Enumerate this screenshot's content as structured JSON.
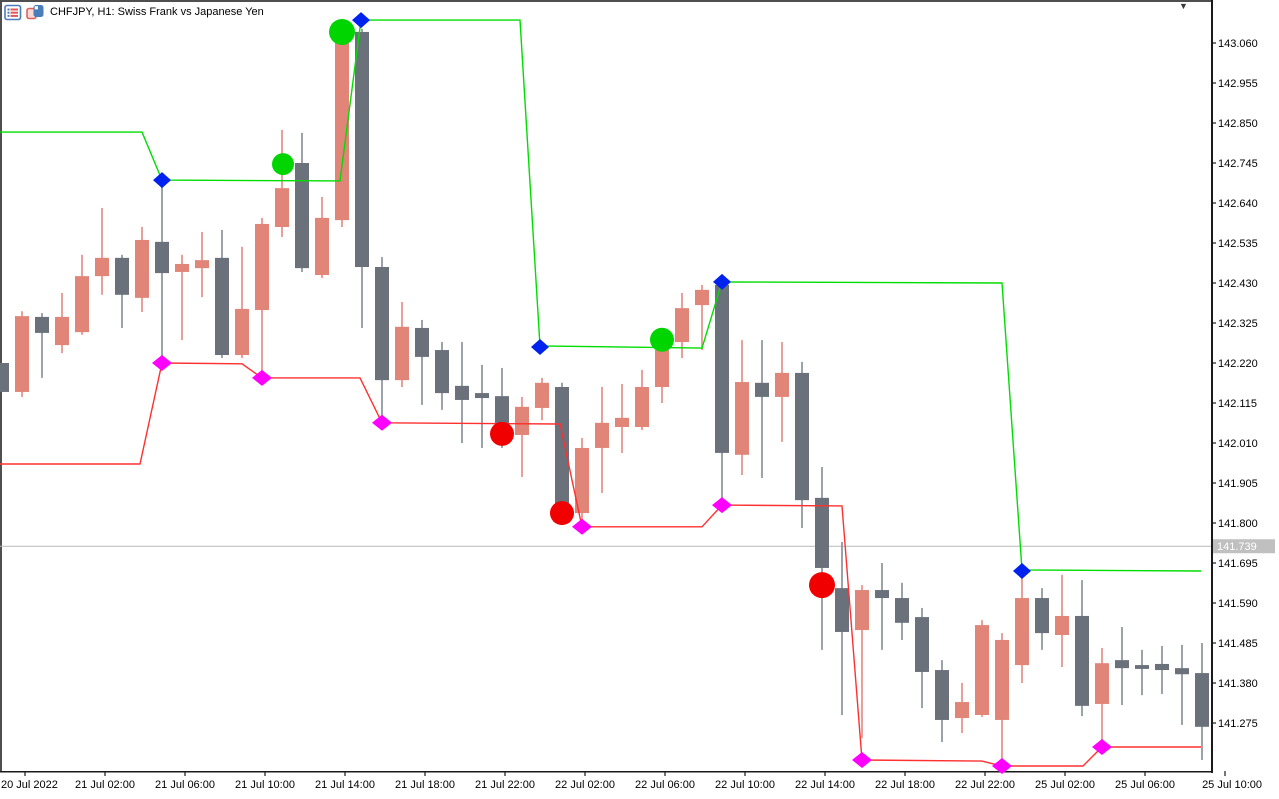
{
  "window": {
    "title": "CHFJPY, H1: Swiss Frank vs Japanese Yen",
    "dropdown_arrow": "▼"
  },
  "colors": {
    "bull": "#e08578",
    "bear": "#6a717b",
    "bull_wick": "#e2897f",
    "bear_wick": "#848b95",
    "up_line": "#00dd00",
    "down_line": "#ff3030",
    "blue_diamond": "#0022ee",
    "magenta_diamond": "#ff00ff",
    "green_circle": "#00d500",
    "red_circle": "#f10000",
    "bid_line": "#b9b9b9",
    "badge_bg": "#c0c0c0",
    "badge_text": "#ffffff",
    "axis_line": "#1a1a1a",
    "border": "#4f4f4f"
  },
  "axes": {
    "price_tick_labels": [
      "143.060",
      "142.955",
      "142.850",
      "142.745",
      "142.640",
      "142.535",
      "142.430",
      "142.325",
      "142.220",
      "142.115",
      "142.010",
      "141.905",
      "141.800",
      "141.695",
      "141.590",
      "141.485",
      "141.380",
      "141.275"
    ],
    "time_tick_labels": [
      "20 Jul 2022",
      "21 Jul 02:00",
      "21 Jul 06:00",
      "21 Jul 10:00",
      "21 Jul 14:00",
      "21 Jul 18:00",
      "21 Jul 22:00",
      "22 Jul 02:00",
      "22 Jul 06:00",
      "22 Jul 10:00",
      "22 Jul 14:00",
      "22 Jul 18:00",
      "22 Jul 22:00",
      "25 Jul 02:00",
      "25 Jul 06:00",
      "25 Jul 10:00"
    ],
    "bid": {
      "label": "141.739",
      "price": 141.739
    }
  },
  "chart_data": {
    "type": "candlestick",
    "symbol": "CHFJPY",
    "timeframe": "H1",
    "title": "CHFJPY, H1: Swiss Frank vs Japanese Yen",
    "price_axis_range": [
      141.16,
      143.17
    ],
    "grid": false,
    "candles": [
      [
        "down",
        142.22,
        142.22,
        142.144,
        142.144
      ],
      [
        "up",
        142.144,
        142.356,
        142.131,
        142.343
      ],
      [
        "down",
        142.341,
        142.351,
        142.181,
        142.299
      ],
      [
        "up",
        142.267,
        142.404,
        142.246,
        142.341
      ],
      [
        "up",
        142.301,
        142.504,
        142.294,
        142.448
      ],
      [
        "up",
        142.448,
        142.627,
        142.399,
        142.496
      ],
      [
        "down",
        142.496,
        142.504,
        142.312,
        142.399
      ],
      [
        "up",
        142.391,
        142.577,
        142.354,
        142.543
      ],
      [
        "down",
        142.538,
        142.685,
        142.228,
        142.456
      ],
      [
        "up",
        142.459,
        142.504,
        142.28,
        142.48
      ],
      [
        "up",
        142.469,
        142.564,
        142.393,
        142.49
      ],
      [
        "down",
        142.496,
        142.569,
        142.233,
        142.241
      ],
      [
        "up",
        142.241,
        142.525,
        142.233,
        142.362
      ],
      [
        "up",
        142.359,
        142.601,
        142.194,
        142.585
      ],
      [
        "up",
        142.577,
        142.832,
        142.551,
        142.679
      ],
      [
        "down",
        142.745,
        142.824,
        142.459,
        142.469
      ],
      [
        "up",
        142.451,
        142.656,
        142.443,
        142.601
      ],
      [
        "up",
        142.595,
        143.078,
        142.577,
        143.068
      ],
      [
        "down",
        143.089,
        143.097,
        142.312,
        142.472
      ],
      [
        "down",
        142.472,
        142.498,
        142.076,
        142.175
      ],
      [
        "up",
        142.175,
        142.38,
        142.157,
        142.315
      ],
      [
        "down",
        142.312,
        142.333,
        142.11,
        142.236
      ],
      [
        "down",
        142.254,
        142.275,
        142.097,
        142.141
      ],
      [
        "down",
        142.16,
        142.275,
        142.01,
        142.123
      ],
      [
        "down",
        142.141,
        142.215,
        141.997,
        142.128
      ],
      [
        "down",
        142.133,
        142.207,
        141.997,
        142.057
      ],
      [
        "up",
        142.031,
        142.131,
        141.921,
        142.105
      ],
      [
        "up",
        142.102,
        142.181,
        142.07,
        142.168
      ],
      [
        "down",
        142.157,
        142.168,
        141.818,
        141.842
      ],
      [
        "up",
        141.826,
        142.023,
        141.808,
        141.997
      ],
      [
        "up",
        141.997,
        142.157,
        141.879,
        142.063
      ],
      [
        "up",
        142.052,
        142.165,
        141.984,
        142.076
      ],
      [
        "up",
        142.052,
        142.202,
        142.044,
        142.157
      ],
      [
        "up",
        142.157,
        142.267,
        142.115,
        142.254
      ],
      [
        "up",
        142.275,
        142.404,
        142.233,
        142.364
      ],
      [
        "up",
        142.372,
        142.425,
        142.254,
        142.412
      ],
      [
        "down",
        142.425,
        142.43,
        141.86,
        141.984
      ],
      [
        "up",
        141.979,
        142.28,
        141.926,
        142.17
      ],
      [
        "down",
        142.168,
        142.28,
        141.918,
        142.131
      ],
      [
        "up",
        142.131,
        142.275,
        142.013,
        142.194
      ],
      [
        "down",
        142.194,
        142.223,
        141.787,
        141.86
      ],
      [
        "down",
        141.866,
        141.947,
        141.467,
        141.682
      ],
      [
        "down",
        141.629,
        141.75,
        141.296,
        141.514
      ],
      [
        "up",
        141.519,
        141.637,
        141.236,
        141.624
      ],
      [
        "down",
        141.624,
        141.695,
        141.467,
        141.603
      ],
      [
        "down",
        141.603,
        141.643,
        141.493,
        141.538
      ],
      [
        "down",
        141.553,
        141.577,
        141.314,
        141.409
      ],
      [
        "down",
        141.414,
        141.44,
        141.225,
        141.283
      ],
      [
        "up",
        141.288,
        141.38,
        141.249,
        141.33
      ],
      [
        "up",
        141.296,
        141.545,
        141.291,
        141.532
      ],
      [
        "up",
        141.283,
        141.511,
        141.17,
        141.493
      ],
      [
        "up",
        141.427,
        141.658,
        141.38,
        141.603
      ],
      [
        "down",
        141.603,
        141.629,
        141.467,
        141.511
      ],
      [
        "up",
        141.506,
        141.664,
        141.422,
        141.556
      ],
      [
        "down",
        141.556,
        141.65,
        141.293,
        141.32
      ],
      [
        "up",
        141.325,
        141.472,
        141.23,
        141.432
      ],
      [
        "down",
        141.44,
        141.527,
        141.322,
        141.419
      ],
      [
        "down",
        141.427,
        141.467,
        141.348,
        141.417
      ],
      [
        "down",
        141.43,
        141.477,
        141.351,
        141.414
      ],
      [
        "down",
        141.419,
        141.48,
        141.27,
        141.403
      ],
      [
        "down",
        141.406,
        141.485,
        141.178,
        141.265
      ]
    ],
    "up_trail_line": [
      [
        0,
        142.826
      ],
      [
        142,
        142.826
      ],
      [
        162,
        142.7
      ],
      [
        340,
        142.698
      ],
      [
        361,
        143.12
      ],
      [
        520,
        143.12
      ],
      [
        540,
        142.265
      ],
      [
        702,
        142.259
      ],
      [
        722,
        142.433
      ],
      [
        1002,
        142.43
      ],
      [
        1022,
        141.677
      ],
      [
        1201,
        141.674
      ]
    ],
    "down_trail_line": [
      [
        0,
        141.955
      ],
      [
        140,
        141.955
      ],
      [
        162,
        142.22
      ],
      [
        242,
        142.218
      ],
      [
        262,
        142.181
      ],
      [
        360,
        142.181
      ],
      [
        382,
        142.063
      ],
      [
        560,
        142.06
      ],
      [
        582,
        141.79
      ],
      [
        702,
        141.79
      ],
      [
        722,
        141.847
      ],
      [
        842,
        141.845
      ],
      [
        862,
        141.178
      ],
      [
        982,
        141.175
      ],
      [
        1002,
        141.162
      ],
      [
        1083,
        141.162
      ],
      [
        1102,
        141.212
      ],
      [
        1201,
        141.212
      ]
    ],
    "markers": {
      "blue_diamonds": [
        [
          162,
          142.7
        ],
        [
          361,
          143.12
        ],
        [
          540,
          142.262
        ],
        [
          722,
          142.433
        ],
        [
          1022,
          141.674
        ]
      ],
      "magenta_diamonds": [
        [
          162,
          142.22
        ],
        [
          262,
          142.181
        ],
        [
          382,
          142.063
        ],
        [
          582,
          141.79
        ],
        [
          722,
          141.847
        ],
        [
          862,
          141.178
        ],
        [
          1002,
          141.162
        ],
        [
          1102,
          141.212
        ]
      ],
      "green_circles": [
        [
          283,
          142.742,
          11
        ],
        [
          342,
          143.089,
          13
        ],
        [
          662,
          142.281,
          12
        ]
      ],
      "red_circles": [
        [
          502,
          142.034,
          12
        ],
        [
          562,
          141.826,
          12
        ],
        [
          822,
          141.637,
          13
        ]
      ]
    }
  }
}
